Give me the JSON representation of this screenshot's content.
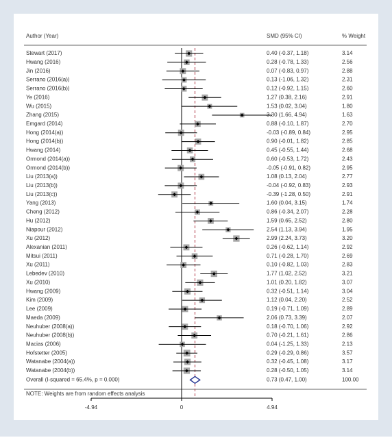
{
  "chart_data": {
    "type": "forest",
    "headers": {
      "study": "Author (Year)",
      "estimate": "SMD (95% CI)",
      "weight": "% Weight"
    },
    "categories": [
      "Stewart (2017)",
      "Hwang (2016)",
      "Jin (2016)",
      "Serrano (2016(a))",
      "Serrano (2016(b))",
      "Ye (2016)",
      "Wu (2015)",
      "Zhang (2015)",
      "Emgard (2014)",
      "Hong (2014(a))",
      "Hong (2014(b))",
      "Hwang (2014)",
      "Ormond (2014(a))",
      "Ormond (2014(b))",
      "Liu (2013(a))",
      "Liu (2013(b))",
      "Liu (2013(c))",
      "Yang (2013)",
      "Cheng (2012)",
      "Hu (2012)",
      "Niapour (2012)",
      "Xu (2012)",
      "Alexanian (2011)",
      "Mitsui (2011)",
      "Xu (2011)",
      "Lebedev (2010)",
      "Xu (2010)",
      "Hwang (2009)",
      "Kim (2009)",
      "Lee (2009)",
      "Maeda (2009)",
      "Neuhuber (2008(a))",
      "Neuhuber (2008(b))",
      "Macias (2006)",
      "Hofstetter (2005)",
      "Watanabe (2004(a))",
      "Watanabe (2004(b))"
    ],
    "values": [
      0.4,
      0.28,
      0.07,
      0.13,
      0.12,
      1.27,
      1.53,
      3.3,
      0.88,
      -0.03,
      0.9,
      0.45,
      0.6,
      -0.05,
      1.08,
      -0.04,
      -0.39,
      1.6,
      0.86,
      1.59,
      2.54,
      2.99,
      0.26,
      0.71,
      0.1,
      1.77,
      1.01,
      0.32,
      1.12,
      0.19,
      2.06,
      0.18,
      0.7,
      0.04,
      0.29,
      0.32,
      0.28
    ],
    "lower": [
      -0.37,
      -0.78,
      -0.83,
      -1.06,
      -0.92,
      0.38,
      0.02,
      1.66,
      -0.1,
      -0.89,
      -0.01,
      -0.55,
      -0.53,
      -0.91,
      0.13,
      -0.92,
      -1.28,
      0.04,
      -0.34,
      0.65,
      1.13,
      2.24,
      -0.62,
      -0.28,
      -0.82,
      1.02,
      0.2,
      -0.51,
      0.04,
      -0.71,
      0.73,
      -0.7,
      -0.21,
      -1.25,
      -0.29,
      -0.45,
      -0.5
    ],
    "upper": [
      1.18,
      1.33,
      0.97,
      1.32,
      1.15,
      2.16,
      3.04,
      4.94,
      1.87,
      0.84,
      1.82,
      1.44,
      1.72,
      0.82,
      2.04,
      0.83,
      0.5,
      3.15,
      2.07,
      2.52,
      3.94,
      3.73,
      1.14,
      1.7,
      1.03,
      2.52,
      1.82,
      1.14,
      2.2,
      1.09,
      3.39,
      1.06,
      1.61,
      1.33,
      0.86,
      1.08,
      1.05
    ],
    "value_labels": [
      "0.40 (-0.37, 1.18)",
      "0.28 (-0.78, 1.33)",
      "0.07 (-0.83, 0.97)",
      "0.13 (-1.06, 1.32)",
      "0.12 (-0.92, 1.15)",
      "1.27 (0.38, 2.16)",
      "1.53 (0.02, 3.04)",
      "3.30 (1.66, 4.94)",
      "0.88 (-0.10, 1.87)",
      "-0.03 (-0.89, 0.84)",
      "0.90 (-0.01, 1.82)",
      "0.45 (-0.55, 1.44)",
      "0.60 (-0.53, 1.72)",
      "-0.05 (-0.91, 0.82)",
      "1.08 (0.13, 2.04)",
      "-0.04 (-0.92, 0.83)",
      "-0.39 (-1.28, 0.50)",
      "1.60 (0.04, 3.15)",
      "0.86 (-0.34, 2.07)",
      "1.59 (0.65, 2.52)",
      "2.54 (1.13, 3.94)",
      "2.99 (2.24, 3.73)",
      "0.26 (-0.62, 1.14)",
      "0.71 (-0.28, 1.70)",
      "0.10 (-0.82, 1.03)",
      "1.77 (1.02, 2.52)",
      "1.01 (0.20, 1.82)",
      "0.32 (-0.51, 1.14)",
      "1.12 (0.04, 2.20)",
      "0.19 (-0.71, 1.09)",
      "2.06 (0.73, 3.39)",
      "0.18 (-0.70, 1.06)",
      "0.70 (-0.21, 1.61)",
      "0.04 (-1.25, 1.33)",
      "0.29 (-0.29, 0.86)",
      "0.32 (-0.45, 1.08)",
      "0.28 (-0.50, 1.05)"
    ],
    "weights": [
      3.14,
      2.56,
      2.88,
      2.31,
      2.6,
      2.91,
      1.8,
      1.63,
      2.7,
      2.95,
      2.85,
      2.68,
      2.43,
      2.95,
      2.77,
      2.93,
      2.91,
      1.74,
      2.28,
      2.8,
      1.95,
      3.2,
      2.92,
      2.69,
      2.83,
      3.21,
      3.07,
      3.04,
      2.52,
      2.89,
      2.07,
      2.92,
      2.86,
      2.13,
      3.57,
      3.17,
      3.14
    ],
    "weight_labels": [
      "3.14",
      "2.56",
      "2.88",
      "2.31",
      "2.60",
      "2.91",
      "1.80",
      "1.63",
      "2.70",
      "2.95",
      "2.85",
      "2.68",
      "2.43",
      "2.95",
      "2.77",
      "2.93",
      "2.91",
      "1.74",
      "2.28",
      "2.80",
      "1.95",
      "3.20",
      "2.92",
      "2.69",
      "2.83",
      "3.21",
      "3.07",
      "3.04",
      "2.52",
      "2.89",
      "2.07",
      "2.92",
      "2.86",
      "2.13",
      "3.57",
      "3.17",
      "3.14"
    ],
    "overall": {
      "label": "Overall  (I-squared = 65.4%, p = 0.000)",
      "value": 0.73,
      "lower": 0.47,
      "upper": 1.0,
      "value_label": "0.73 (0.47, 1.00)",
      "weight": {
        "value": 100,
        "label": "100.00"
      }
    },
    "note": "NOTE: Weights are from random effects analysis",
    "xlim": [
      -4.94,
      4.94
    ],
    "xticks": [
      -4.94,
      0,
      4.94
    ],
    "color": "#a9a9a9",
    "line_color": "#000000",
    "overall_color": "#1f2f8f",
    "ref_color": "#b03040"
  }
}
